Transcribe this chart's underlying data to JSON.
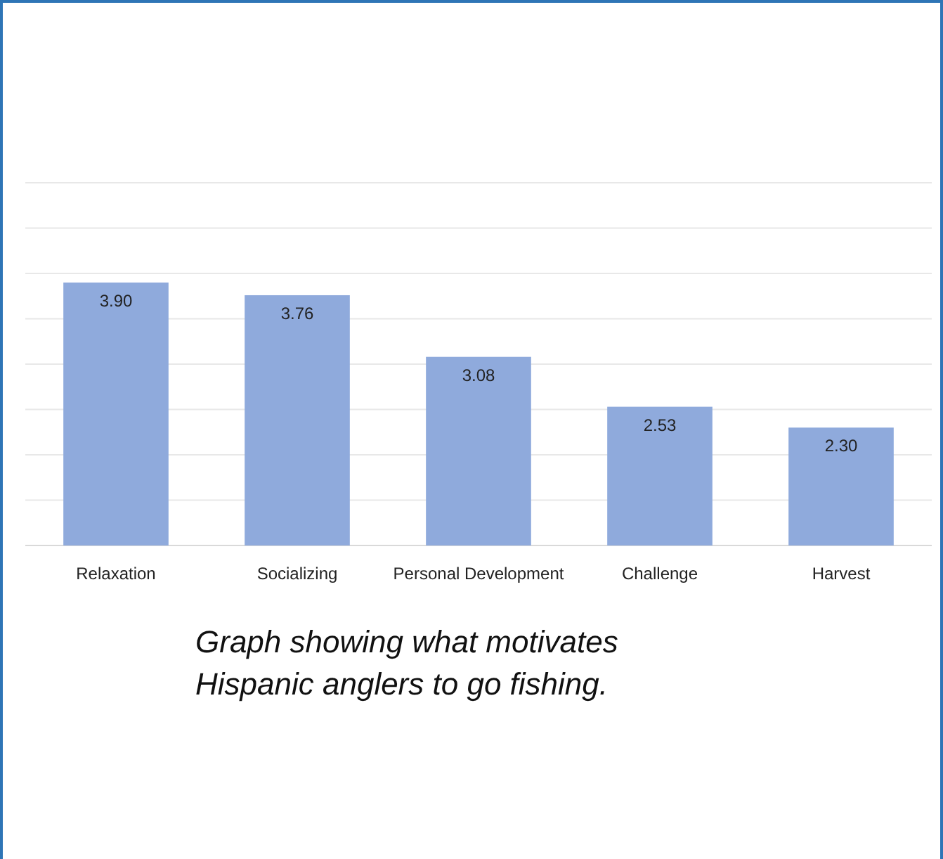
{
  "chart_data": {
    "type": "bar",
    "categories": [
      "Relaxation",
      "Socializing",
      "Personal Development",
      "Challenge",
      "Harvest"
    ],
    "values": [
      3.9,
      3.76,
      3.08,
      2.53,
      2.3
    ],
    "color": "#8faadc",
    "value_labels": [
      "3.90",
      "3.76",
      "3.08",
      "2.53",
      "2.30"
    ],
    "ylim": [
      1,
      5
    ],
    "yticks": [
      {
        "value": 1,
        "label": null
      },
      {
        "value": 1.5,
        "label": null
      },
      {
        "value": 2,
        "label": null
      },
      {
        "value": 2.5,
        "label": null
      },
      {
        "value": 3,
        "label": null
      },
      {
        "value": 3.5,
        "label": null
      },
      {
        "value": 4,
        "label": null
      },
      {
        "value": 4.5,
        "label": null
      },
      {
        "value": 5,
        "label": null
      }
    ],
    "grid": "y",
    "tick_labels": "x",
    "annotations": [
      "Graph showing what motivates Hispanic anglers to go fishing."
    ]
  }
}
